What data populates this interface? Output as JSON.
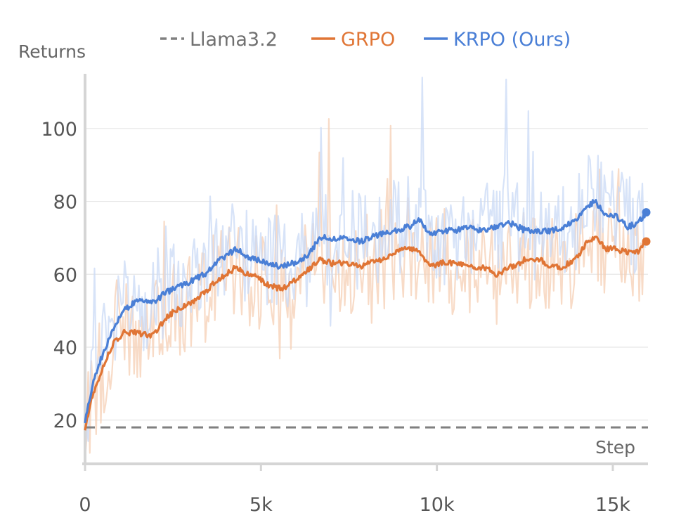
{
  "chart_data": {
    "type": "line",
    "xlabel": "Step",
    "ylabel": "Returns",
    "xlim": [
      0,
      16000
    ],
    "ylim": [
      8,
      115
    ],
    "xticks": [
      0,
      5000,
      10000,
      15000
    ],
    "xtick_labels": [
      "0",
      "5k",
      "10k",
      "15k"
    ],
    "yticks": [
      20,
      40,
      60,
      80,
      100
    ],
    "ytick_labels": [
      "20",
      "40",
      "60",
      "80",
      "100"
    ],
    "grid": true,
    "legend_position": "top",
    "series": [
      {
        "name": "Llama3.2",
        "color": "#808080",
        "style": "dashed",
        "x": [
          0,
          16000
        ],
        "y": [
          18,
          18
        ]
      },
      {
        "name": "GRPO",
        "color": "#E07535",
        "raw_color": "#F6CFB4",
        "x": [
          0,
          250,
          500,
          800,
          1100,
          1500,
          1900,
          2300,
          2700,
          3000,
          3400,
          3700,
          4000,
          4300,
          4600,
          4900,
          5200,
          5600,
          5900,
          6300,
          6700,
          7000,
          7400,
          7800,
          8100,
          8400,
          8800,
          9200,
          9500,
          9800,
          10100,
          10500,
          10900,
          11300,
          11700,
          12100,
          12500,
          12900,
          13300,
          13600,
          14000,
          14300,
          14500,
          14800,
          15100,
          15400,
          15700,
          15950
        ],
        "y": [
          18,
          28,
          34,
          41,
          44,
          44,
          43,
          48,
          51,
          52,
          55,
          58,
          60,
          62,
          60,
          59,
          57,
          56,
          58,
          61,
          64,
          63,
          63,
          62,
          63,
          64,
          66,
          67,
          66,
          62,
          63,
          63,
          62,
          62,
          60,
          62,
          64,
          64,
          62,
          62,
          65,
          69,
          70,
          67,
          67,
          66,
          66,
          69
        ]
      },
      {
        "name": "KRPO (Ours)",
        "color": "#4A7FD6",
        "raw_color": "#C9D9F5",
        "x": [
          0,
          250,
          500,
          800,
          1100,
          1500,
          1900,
          2300,
          2700,
          3000,
          3400,
          3700,
          4000,
          4300,
          4600,
          4900,
          5200,
          5600,
          5900,
          6300,
          6700,
          7000,
          7400,
          7800,
          8100,
          8400,
          8800,
          9200,
          9500,
          9800,
          10100,
          10500,
          10900,
          11300,
          11700,
          12100,
          12500,
          12900,
          13300,
          13600,
          14000,
          14300,
          14500,
          14800,
          15100,
          15400,
          15700,
          15950
        ],
        "y": [
          20,
          31,
          38,
          45,
          50,
          53,
          52,
          55,
          57,
          58,
          60,
          63,
          65,
          67,
          65,
          64,
          63,
          62,
          63,
          65,
          70,
          70,
          70,
          69,
          70,
          71,
          72,
          73,
          75,
          71,
          72,
          72,
          73,
          72,
          73,
          74,
          72,
          72,
          72,
          73,
          75,
          79,
          80,
          76,
          76,
          73,
          74,
          77
        ]
      }
    ]
  }
}
